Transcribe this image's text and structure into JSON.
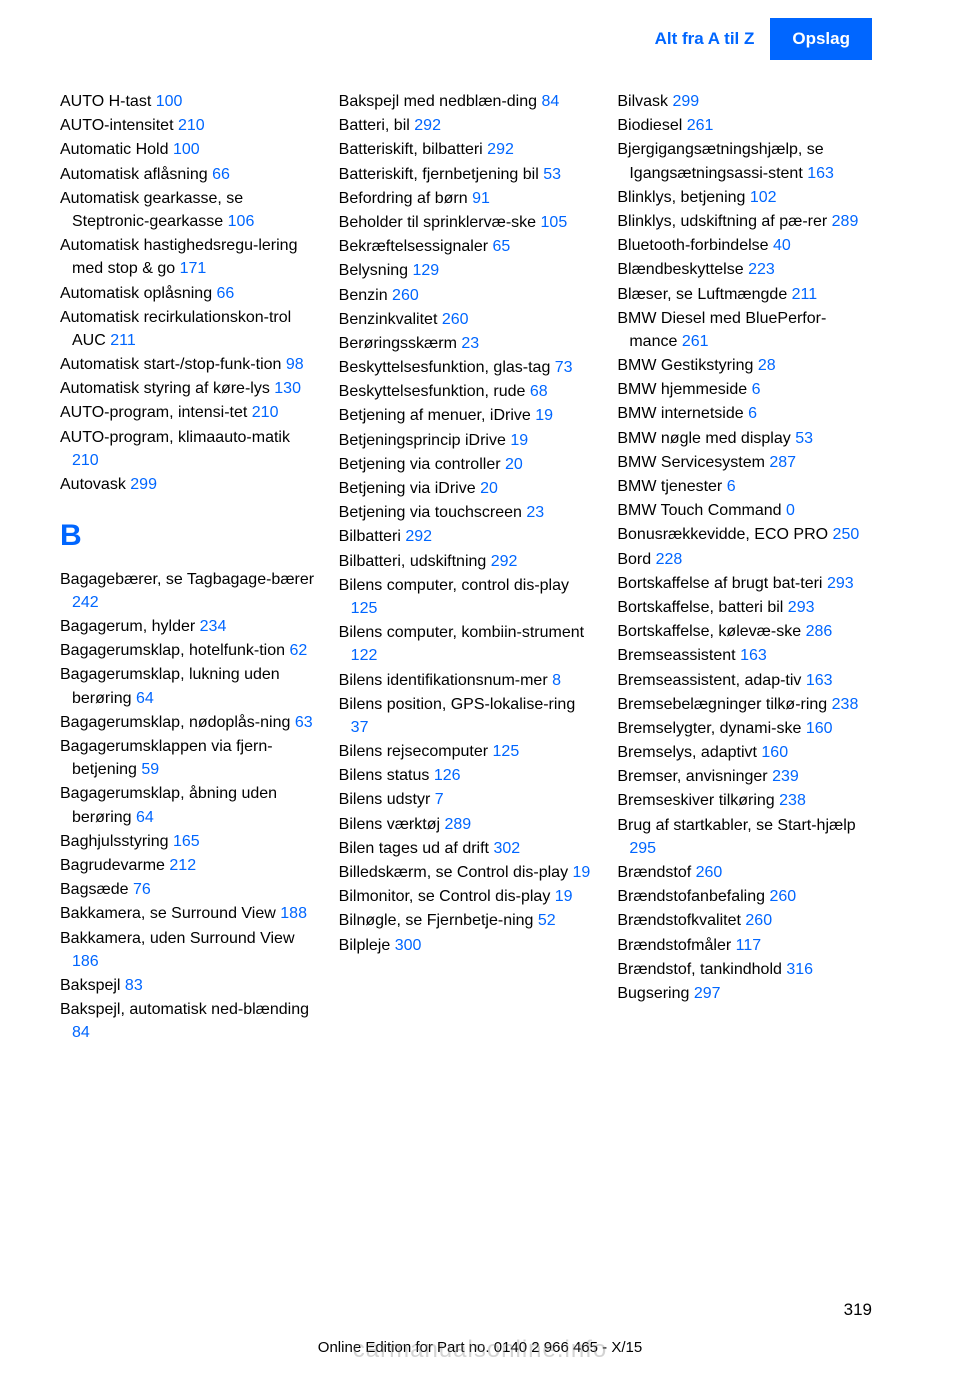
{
  "header": {
    "breadcrumb": "Alt fra A til Z",
    "tab": "Opslag"
  },
  "colors": {
    "link": "#0066ff",
    "text": "#000000",
    "tab_bg": "#0066ff",
    "tab_text": "#ffffff"
  },
  "typography": {
    "body_fontsize": 16,
    "header_fontsize": 17,
    "letter_fontsize": 30,
    "line_height": 1.45
  },
  "page_number": "319",
  "footer": "Online Edition for Part no. 0140 2 966 465 - X/15",
  "watermark": "carmanualsonline.info",
  "columns": [
    {
      "entries": [
        {
          "text": "AUTO H-tast ",
          "page": "100"
        },
        {
          "text": "AUTO-intensitet ",
          "page": "210"
        },
        {
          "text": "Automatic Hold ",
          "page": "100"
        },
        {
          "text": "Automatisk aflåsning ",
          "page": "66"
        },
        {
          "text": "Automatisk gearkasse, se Steptronic-gearkasse ",
          "page": "106"
        },
        {
          "text": "Automatisk hastighedsregu‐lering med stop & go ",
          "page": "171"
        },
        {
          "text": "Automatisk oplåsning ",
          "page": "66"
        },
        {
          "text": "Automatisk recirkulationskon‐trol AUC ",
          "page": "211"
        },
        {
          "text": "Automatisk start-/stop-funk‐tion ",
          "page": "98"
        },
        {
          "text": "Automatisk styring af køre‐lys ",
          "page": "130"
        },
        {
          "text": "AUTO-program, intensi‐tet ",
          "page": "210"
        },
        {
          "text": "AUTO-program, klimaauto‐matik ",
          "page": "210"
        },
        {
          "text": "Autovask ",
          "page": "299"
        },
        {
          "letter": "B"
        },
        {
          "text": "Bagagebærer, se Tagbagage‐bærer ",
          "page": "242"
        },
        {
          "text": "Bagagerum, hylder ",
          "page": "234"
        },
        {
          "text": "Bagagerumsklap, hotelfunk‐tion ",
          "page": "62"
        },
        {
          "text": "Bagagerumsklap, lukning uden berøring ",
          "page": "64"
        },
        {
          "text": "Bagagerumsklap, nødoplås‐ning ",
          "page": "63"
        },
        {
          "text": "Bagagerumsklappen via fjern‐betjening ",
          "page": "59"
        },
        {
          "text": "Bagagerumsklap, åbning uden berøring ",
          "page": "64"
        },
        {
          "text": "Baghjulsstyring ",
          "page": "165"
        },
        {
          "text": "Bagrudevarme ",
          "page": "212"
        },
        {
          "text": "Bagsæde ",
          "page": "76"
        },
        {
          "text": "Bakkamera, se Surround View ",
          "page": "188"
        },
        {
          "text": "Bakkamera, uden Surround View ",
          "page": "186"
        },
        {
          "text": "Bakspejl ",
          "page": "83"
        },
        {
          "text": "Bakspejl, automatisk ned‐blænding ",
          "page": "84"
        }
      ]
    },
    {
      "entries": [
        {
          "text": "Bakspejl med nedblæn‐ding ",
          "page": "84"
        },
        {
          "text": "Batteri, bil ",
          "page": "292"
        },
        {
          "text": "Batteriskift, bilbatteri ",
          "page": "292"
        },
        {
          "text": "Batteriskift, fjernbetjening bil ",
          "page": "53"
        },
        {
          "text": "Befordring af børn ",
          "page": "91"
        },
        {
          "text": "Beholder til sprinklervæ‐ske ",
          "page": "105"
        },
        {
          "text": "Bekræftelsessignaler ",
          "page": "65"
        },
        {
          "text": "Belysning ",
          "page": "129"
        },
        {
          "text": "Benzin ",
          "page": "260"
        },
        {
          "text": "Benzinkvalitet ",
          "page": "260"
        },
        {
          "text": "Berøringsskærm ",
          "page": "23"
        },
        {
          "text": "Beskyttelsesfunktion, glas‐tag ",
          "page": "73"
        },
        {
          "text": "Beskyttelsesfunktion, rude ",
          "page": "68"
        },
        {
          "text": "Betjening af menuer, iDrive ",
          "page": "19"
        },
        {
          "text": "Betjeningsprincip iDrive ",
          "page": "19"
        },
        {
          "text": "Betjening via controller ",
          "page": "20"
        },
        {
          "text": "Betjening via iDrive ",
          "page": "20"
        },
        {
          "text": "Betjening via touchscreen ",
          "page": "23"
        },
        {
          "text": "Bilbatteri ",
          "page": "292"
        },
        {
          "text": "Bilbatteri, udskiftning ",
          "page": "292"
        },
        {
          "text": "Bilens computer, control dis‐play ",
          "page": "125"
        },
        {
          "text": "Bilens computer, kombiin‐strument ",
          "page": "122"
        },
        {
          "text": "Bilens identifikationsnum‐mer ",
          "page": "8"
        },
        {
          "text": "Bilens position, GPS-lokalise‐ring ",
          "page": "37"
        },
        {
          "text": "Bilens rejsecomputer ",
          "page": "125"
        },
        {
          "text": "Bilens status ",
          "page": "126"
        },
        {
          "text": "Bilens udstyr ",
          "page": "7"
        },
        {
          "text": "Bilens værktøj ",
          "page": "289"
        },
        {
          "text": "Bilen tages ud af drift ",
          "page": "302"
        },
        {
          "text": "Billedskærm, se Control dis‐play ",
          "page": "19"
        },
        {
          "text": "Bilmonitor, se Control dis‐play ",
          "page": "19"
        },
        {
          "text": "Bilnøgle, se Fjernbetje‐ning ",
          "page": "52"
        },
        {
          "text": "Bilpleje ",
          "page": "300"
        }
      ]
    },
    {
      "entries": [
        {
          "text": "Bilvask ",
          "page": "299"
        },
        {
          "text": "Biodiesel ",
          "page": "261"
        },
        {
          "text": "Bjergigangsætningshjælp, se Igangsætningsassi‐stent ",
          "page": "163"
        },
        {
          "text": "Blinklys, betjening ",
          "page": "102"
        },
        {
          "text": "Blinklys, udskiftning af pæ‐rer ",
          "page": "289"
        },
        {
          "text": "Bluetooth-forbindelse ",
          "page": "40"
        },
        {
          "text": "Blændbeskyttelse ",
          "page": "223"
        },
        {
          "text": "Blæser, se Luftmængde ",
          "page": "211"
        },
        {
          "text": "BMW Diesel med BluePerfor‐mance ",
          "page": "261"
        },
        {
          "text": "BMW Gestikstyring ",
          "page": "28"
        },
        {
          "text": "BMW hjemmeside ",
          "page": "6"
        },
        {
          "text": "BMW internetside ",
          "page": "6"
        },
        {
          "text": "BMW nøgle med display ",
          "page": "53"
        },
        {
          "text": "BMW Servicesystem ",
          "page": "287"
        },
        {
          "text": "BMW tjenester ",
          "page": "6"
        },
        {
          "text": "BMW Touch Command  ",
          "page": "0"
        },
        {
          "text": "Bonusrækkevidde, ECO PRO ",
          "page": "250"
        },
        {
          "text": "Bord ",
          "page": "228"
        },
        {
          "text": "Bortskaffelse af brugt bat‐teri ",
          "page": "293"
        },
        {
          "text": "Bortskaffelse, batteri bil ",
          "page": "293"
        },
        {
          "text": "Bortskaffelse, kølevæ‐ske ",
          "page": "286"
        },
        {
          "text": "Bremseassistent ",
          "page": "163"
        },
        {
          "text": "Bremseassistent, adap‐tiv ",
          "page": "163"
        },
        {
          "text": "Bremsebelægninger tilkø‐ring ",
          "page": "238"
        },
        {
          "text": "Bremselygter, dynami‐ske ",
          "page": "160"
        },
        {
          "text": "Bremselys, adaptivt ",
          "page": "160"
        },
        {
          "text": "Bremser, anvisninger ",
          "page": "239"
        },
        {
          "text": "Bremseskiver tilkøring ",
          "page": "238"
        },
        {
          "text": "Brug af startkabler, se Start‐hjælp ",
          "page": "295"
        },
        {
          "text": "Brændstof ",
          "page": "260"
        },
        {
          "text": "Brændstofanbefaling ",
          "page": "260"
        },
        {
          "text": "Brændstofkvalitet ",
          "page": "260"
        },
        {
          "text": "Brændstofmåler ",
          "page": "117"
        },
        {
          "text": "Brændstof, tankindhold ",
          "page": "316"
        },
        {
          "text": "Bugsering ",
          "page": "297"
        }
      ]
    }
  ]
}
